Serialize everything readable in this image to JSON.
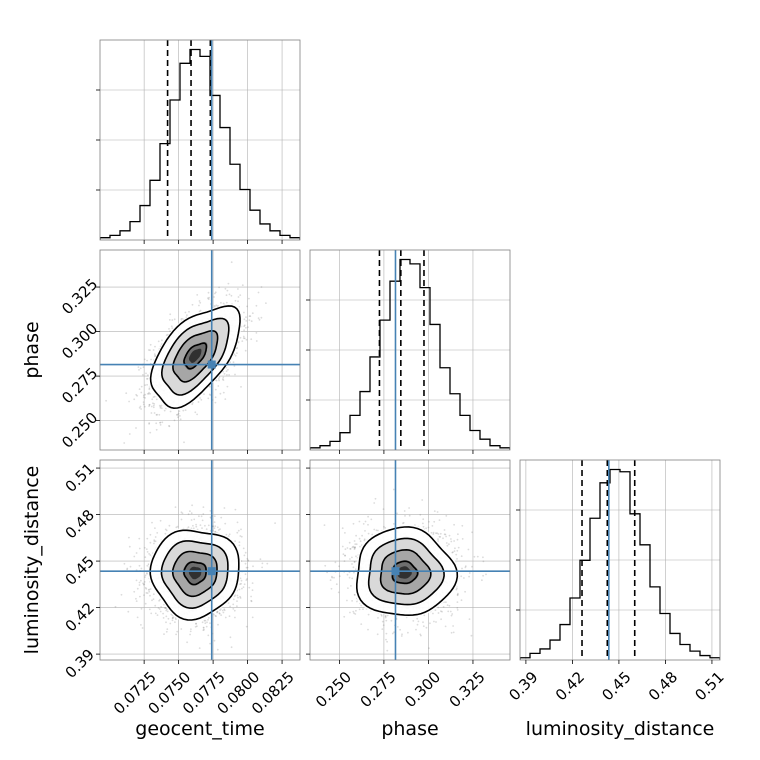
{
  "chart_data": {
    "type": "corner",
    "parameters": [
      {
        "key": "geocent_time",
        "label": "geocent_time",
        "lim": [
          0.0693,
          0.0838
        ],
        "ticks": [
          0.0725,
          0.075,
          0.0775,
          0.08,
          0.0825
        ],
        "tick_labels": [
          "0.0725",
          "0.0750",
          "0.0775",
          "0.0800",
          "0.0825"
        ],
        "truth": 0.0774,
        "quantiles": [
          0.0742,
          0.0759,
          0.0773
        ]
      },
      {
        "key": "phase",
        "label": "phase",
        "lim": [
          0.2335,
          0.3458
        ],
        "ticks": [
          0.25,
          0.275,
          0.3,
          0.325
        ],
        "tick_labels": [
          "0.250",
          "0.275",
          "0.300",
          "0.325"
        ],
        "truth": 0.2815,
        "quantiles": [
          0.2725,
          0.2845,
          0.2975
        ]
      },
      {
        "key": "luminosity_distance",
        "label": "luminosity_distance",
        "lim": [
          0.3862,
          0.5152
        ],
        "ticks": [
          0.39,
          0.42,
          0.45,
          0.48,
          0.51
        ],
        "tick_labels": [
          "0.39",
          "0.42",
          "0.45",
          "0.48",
          "0.51"
        ],
        "truth": 0.4435,
        "quantiles": [
          0.4262,
          0.4425,
          0.4602
        ]
      }
    ],
    "histograms": [
      {
        "param": "geocent_time",
        "counts": [
          1,
          2,
          4,
          8,
          15,
          26,
          42,
          61,
          77,
          83,
          80,
          63,
          49,
          33,
          22,
          13,
          7,
          4,
          2,
          1
        ]
      },
      {
        "param": "phase",
        "counts": [
          1,
          2,
          4,
          8,
          16,
          27,
          43,
          60,
          78,
          88,
          86,
          75,
          58,
          38,
          26,
          16,
          9,
          5,
          2,
          1
        ]
      },
      {
        "param": "luminosity_distance",
        "counts": [
          1,
          3,
          5,
          9,
          16,
          28,
          45,
          64,
          80,
          86,
          85,
          66,
          52,
          33,
          21,
          12,
          7,
          4,
          2,
          1
        ]
      }
    ],
    "pairs": [
      {
        "x": "geocent_time",
        "y": "phase",
        "mean": [
          0.0762,
          0.2865
        ],
        "std": [
          0.0016,
          0.0139
        ],
        "corr": 0.55
      },
      {
        "x": "geocent_time",
        "y": "luminosity_distance",
        "mean": [
          0.0762,
          0.4425
        ],
        "std": [
          0.0016,
          0.0142
        ],
        "corr": 0.02
      },
      {
        "x": "phase",
        "y": "luminosity_distance",
        "mean": [
          0.2865,
          0.4425
        ],
        "std": [
          0.0139,
          0.0142
        ],
        "corr": 0.0
      }
    ],
    "contour_levels_sigma": [
      0.5,
      1.0,
      1.5,
      2.0
    ],
    "colors": {
      "truth": "#4682b4",
      "hist": "#000000",
      "quantile": "#000000",
      "grid": "#b0b0b0",
      "scatter": "#808080"
    }
  }
}
